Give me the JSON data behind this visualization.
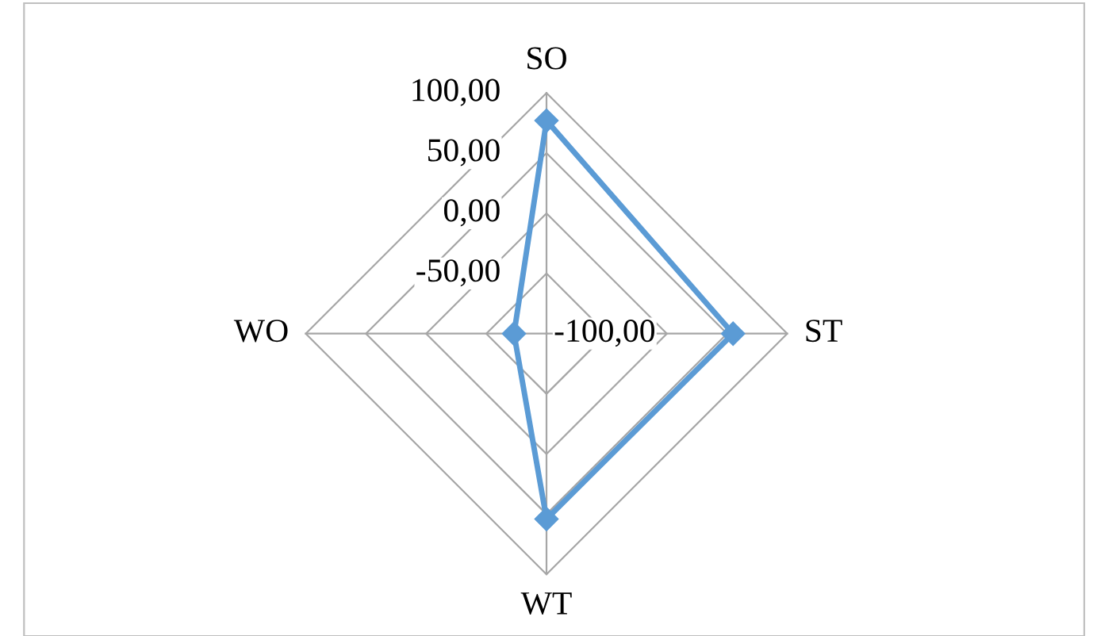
{
  "chart_data": {
    "type": "radar",
    "categories": [
      "SO",
      "ST",
      "WT",
      "WO"
    ],
    "ylim": [
      -100,
      100
    ],
    "yticks": [
      {
        "value": -100,
        "label": "-100,00"
      },
      {
        "value": -50,
        "label": "-50,00"
      },
      {
        "value": 0,
        "label": "0,00"
      },
      {
        "value": 50,
        "label": "50,00"
      },
      {
        "value": 100,
        "label": "100,00"
      }
    ],
    "grid": true,
    "marker": "diamond",
    "line_style": "solid",
    "series": [
      {
        "color": "#5b9bd5",
        "values": [
          77,
          55,
          54,
          -73
        ]
      }
    ]
  }
}
